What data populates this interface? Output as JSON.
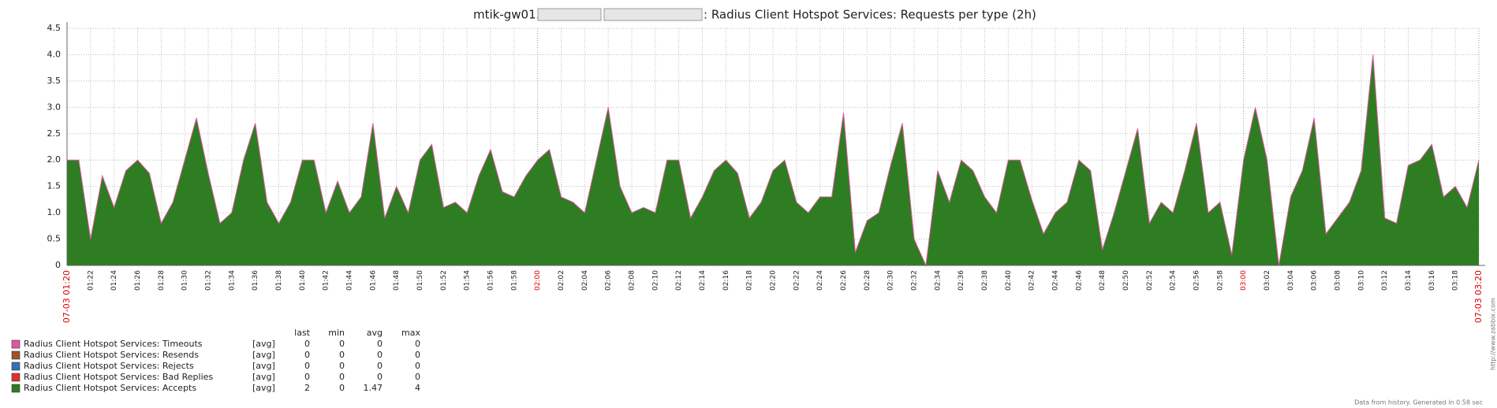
{
  "chart_data": {
    "type": "area",
    "title_parts": [
      "mtik-gw01.",
      ": Radius Client Hotspot Services: Requests per type (2h)"
    ],
    "categories": [
      "07-03 01:20",
      null,
      "01:22",
      null,
      "01:24",
      null,
      "01:26",
      null,
      "01:28",
      null,
      "01:30",
      null,
      "01:32",
      null,
      "01:34",
      null,
      "01:36",
      null,
      "01:38",
      null,
      "01:40",
      null,
      "01:42",
      null,
      "01:44",
      null,
      "01:46",
      null,
      "01:48",
      null,
      "01:50",
      null,
      "01:52",
      null,
      "01:54",
      null,
      "01:56",
      null,
      "01:58",
      null,
      "02:00",
      null,
      "02:02",
      null,
      "02:04",
      null,
      "02:06",
      null,
      "02:08",
      null,
      "02:10",
      null,
      "02:12",
      null,
      "02:14",
      null,
      "02:16",
      null,
      "02:18",
      null,
      "02:20",
      null,
      "02:22",
      null,
      "02:24",
      null,
      "02:26",
      null,
      "02:28",
      null,
      "02:30",
      null,
      "02:32",
      null,
      "02:34",
      null,
      "02:36",
      null,
      "02:38",
      null,
      "02:40",
      null,
      "02:42",
      null,
      "02:44",
      null,
      "02:46",
      null,
      "02:48",
      null,
      "02:50",
      null,
      "02:52",
      null,
      "02:54",
      null,
      "02:56",
      null,
      "02:58",
      null,
      "03:00",
      null,
      "03:02",
      null,
      "03:04",
      null,
      "03:06",
      null,
      "03:08",
      null,
      "03:10",
      null,
      "03:12",
      null,
      "03:14",
      null,
      "03:16",
      null,
      "03:18",
      null,
      "07-03 03:20"
    ],
    "series": [
      {
        "name": "Radius Client Hotspot Services: Timeouts",
        "color": "#e0589e",
        "func": "[avg]",
        "last": 0,
        "min": 0,
        "avg": 0,
        "max": 0
      },
      {
        "name": "Radius Client Hotspot Services: Resends",
        "color": "#a0522d",
        "func": "[avg]",
        "last": 0,
        "min": 0,
        "avg": 0,
        "max": 0
      },
      {
        "name": "Radius Client Hotspot Services: Rejects",
        "color": "#3a6fb0",
        "func": "[avg]",
        "last": 0,
        "min": 0,
        "avg": 0,
        "max": 0
      },
      {
        "name": "Radius Client Hotspot Services: Bad Replies",
        "color": "#e0302e",
        "func": "[avg]",
        "last": 0,
        "min": 0,
        "avg": 0,
        "max": 0
      },
      {
        "name": "Radius Client Hotspot Services: Accepts",
        "color": "#2e7d22",
        "func": "[avg]",
        "last": 2,
        "min": 0,
        "avg": 1.47,
        "max": 4,
        "values": [
          2,
          2,
          0.5,
          1.7,
          1.1,
          1.8,
          2,
          1.75,
          0.8,
          1.2,
          2,
          2.8,
          1.75,
          0.8,
          1,
          2,
          2.7,
          1.2,
          0.8,
          1.2,
          2,
          2,
          1,
          1.6,
          1,
          1.3,
          2.7,
          0.9,
          1.5,
          1,
          2,
          2.3,
          1.1,
          1.2,
          1,
          1.7,
          2.2,
          1.4,
          1.3,
          1.7,
          2,
          2.2,
          1.3,
          1.2,
          1,
          2,
          3,
          1.5,
          1,
          1.1,
          1,
          2,
          2,
          0.9,
          1.3,
          1.8,
          2,
          1.75,
          0.9,
          1.2,
          1.8,
          2,
          1.2,
          1,
          1.3,
          1.3,
          2.9,
          0.25,
          0.85,
          1,
          1.9,
          2.7,
          0.5,
          0,
          1.8,
          1.2,
          2,
          1.8,
          1.3,
          1,
          2,
          2,
          1.25,
          0.6,
          1,
          1.2,
          2,
          1.8,
          0.3,
          1,
          1.8,
          2.6,
          0.8,
          1.2,
          1,
          1.8,
          2.7,
          1,
          1.2,
          0.2,
          2,
          3,
          2,
          0,
          1.3,
          1.8,
          2.8,
          0.6,
          0.9,
          1.2,
          1.8,
          4,
          0.9,
          0.8,
          1.9,
          2,
          2.3,
          1.3,
          1.5,
          1.1,
          2
        ]
      }
    ],
    "legend_headers": [
      "last",
      "min",
      "avg",
      "max"
    ],
    "ylim": [
      0,
      4.5
    ],
    "yticks": [
      0,
      0.5,
      {
        "value": 1,
        "label": "1.0"
      },
      1.5,
      {
        "value": 2,
        "label": "2.0"
      },
      2.5,
      {
        "value": 3,
        "label": "3.0"
      },
      3.5,
      {
        "value": 4,
        "label": "4.0"
      },
      4.5
    ],
    "grid": true,
    "footer": "Data from history. Generated in 0.58 sec",
    "watermark": "http://www.zabbix.com"
  }
}
